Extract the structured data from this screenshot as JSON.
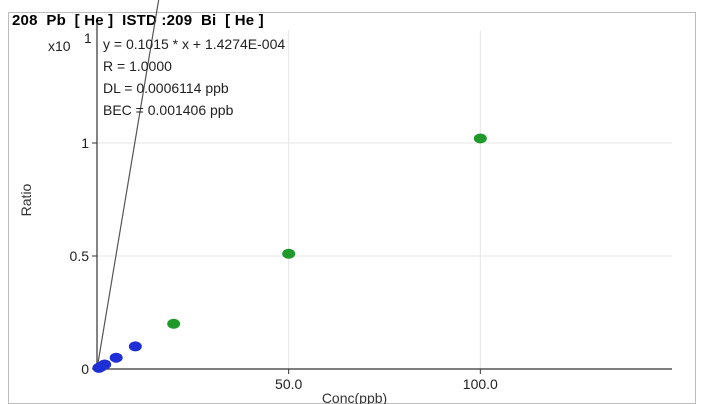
{
  "chart_title": "208  Pb  [ He ]  ISTD :209  Bi  [ He ]",
  "y_scale_label": "x10",
  "y_scale_exp": "1",
  "annotations": [
    "y = 0.1015 * x  + 1.4274E-004",
    "R =  1.0000",
    "DL = 0.0006114 ppb",
    "BEC = 0.001406 ppb"
  ],
  "colors": {
    "fit_line": "#555555",
    "std_blue": "#1f2fd6",
    "std_green": "#1f9a2a",
    "grid": "#e6e6e6"
  },
  "chart_data": {
    "type": "scatter",
    "xlabel": "Conc(ppb)",
    "ylabel": "Ratio",
    "x_ticks": [
      {
        "value": 50,
        "label": "50.0"
      },
      {
        "value": 100,
        "label": "100.0"
      }
    ],
    "y_ticks": [
      {
        "value": 0,
        "label": "0"
      },
      {
        "value": 0.5,
        "label": "0.5"
      },
      {
        "value": 1,
        "label": "1"
      }
    ],
    "xlim": [
      0,
      150
    ],
    "ylim": [
      0,
      1.5
    ],
    "grid": true,
    "fit": {
      "slope": 0.1015,
      "intercept": 0.00014274
    },
    "series": [
      {
        "color_key": "std_blue",
        "points": [
          [
            0.5,
            0.005
          ],
          [
            1,
            0.01
          ],
          [
            2,
            0.02
          ],
          [
            5,
            0.05
          ],
          [
            10,
            0.1
          ]
        ]
      },
      {
        "color_key": "std_green",
        "points": [
          [
            20,
            0.2
          ],
          [
            50,
            0.51
          ],
          [
            100,
            1.02
          ]
        ]
      }
    ]
  }
}
